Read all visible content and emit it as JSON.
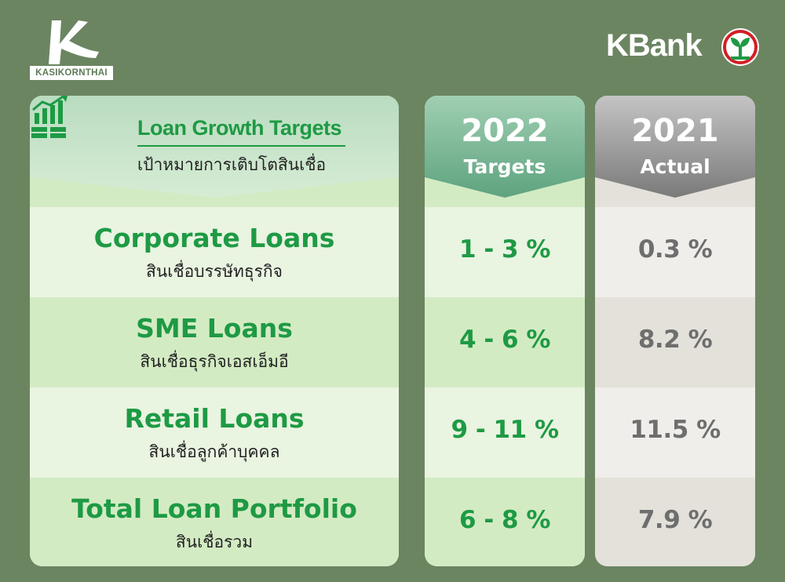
{
  "logos": {
    "left_text": "KASIKORNTHAI",
    "right_text": "KBank"
  },
  "header": {
    "title_en": "Loan Growth Targets",
    "title_th": "เป้าหมายการเติบโตสินเชื่อ",
    "icon": "growth-chart-money-icon"
  },
  "columns": [
    {
      "year": "2022",
      "label": "Targets"
    },
    {
      "year": "2021",
      "label": "Actual"
    }
  ],
  "rows": [
    {
      "name_en": "Corporate Loans",
      "name_th": "สินเชื่อบรรษัทธุรกิจ",
      "target_2022": "1 - 3 %",
      "actual_2021": "0.3 %"
    },
    {
      "name_en": "SME Loans",
      "name_th": "สินเชื่อธุรกิจเอสเอ็มอี",
      "target_2022": "4 - 6 %",
      "actual_2021": "8.2 %"
    },
    {
      "name_en": "Retail Loans",
      "name_th": "สินเชื่อลูกค้าบุคคล",
      "target_2022": "9 - 11 %",
      "actual_2021": "11.5 %"
    },
    {
      "name_en": "Total Loan Portfolio",
      "name_th": "สินเชื่อรวม",
      "target_2022": "6 - 8 %",
      "actual_2021": "7.9 %"
    }
  ],
  "colors": {
    "background": "#6b8561",
    "accent_green": "#1e9a44",
    "header_2022": "#7fb996",
    "header_2021": "#8c8c8c",
    "value_grey": "#6e6e6e"
  }
}
